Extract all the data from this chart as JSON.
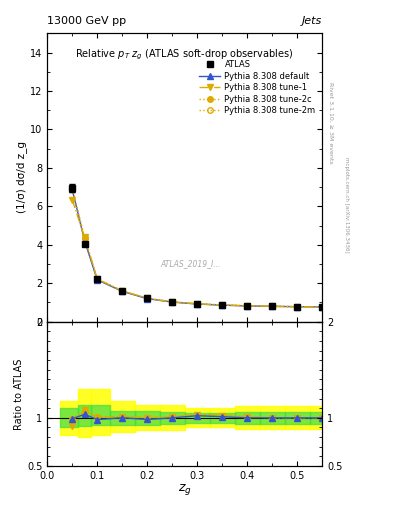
{
  "title_top_left": "13000 GeV pp",
  "title_top_right": "Jets",
  "main_title": "Relative $p_T$ $z_g$ (ATLAS soft-drop observables)",
  "xlabel": "$z_g$",
  "ylabel_main": "(1/σ) dσ/d z_g",
  "ylabel_ratio": "Ratio to ATLAS",
  "watermark": "ATLAS_2019_I...",
  "right_label1": "Rivet 3.1.10, ≥ 3M events",
  "right_label2": "mcplots.cern.ch [arXiv:1306.3436]",
  "zg_points": [
    0.05,
    0.075,
    0.1,
    0.15,
    0.2,
    0.25,
    0.3,
    0.35,
    0.4,
    0.45,
    0.5,
    0.55
  ],
  "atlas_data": [
    6.95,
    4.05,
    2.22,
    1.58,
    1.22,
    1.02,
    0.9,
    0.85,
    0.82,
    0.8,
    0.78,
    0.77
  ],
  "atlas_err": [
    0.2,
    0.12,
    0.08,
    0.05,
    0.04,
    0.03,
    0.025,
    0.025,
    0.02,
    0.02,
    0.02,
    0.02
  ],
  "pythia_default": [
    6.88,
    4.2,
    2.18,
    1.58,
    1.2,
    1.02,
    0.92,
    0.86,
    0.82,
    0.8,
    0.78,
    0.77
  ],
  "pythia_tune1": [
    6.35,
    4.38,
    2.22,
    1.6,
    1.22,
    1.03,
    0.93,
    0.87,
    0.83,
    0.8,
    0.78,
    0.77
  ],
  "pythia_tune2c": [
    6.9,
    4.35,
    2.24,
    1.6,
    1.22,
    1.03,
    0.93,
    0.87,
    0.83,
    0.8,
    0.78,
    0.77
  ],
  "pythia_tune2m": [
    6.9,
    4.35,
    2.24,
    1.6,
    1.22,
    1.03,
    0.93,
    0.87,
    0.83,
    0.8,
    0.78,
    0.77
  ],
  "color_default": "#3355cc",
  "color_tune1": "#ddaa00",
  "color_tune2c": "#ddaa00",
  "color_tune2m": "#ddaa00",
  "ratio_default": [
    0.99,
    1.037,
    0.982,
    1.001,
    0.983,
    1.0,
    1.022,
    1.012,
    1.0,
    1.0,
    1.0,
    1.0
  ],
  "ratio_tune1": [
    0.913,
    1.081,
    1.0,
    1.013,
    1.0,
    1.01,
    1.033,
    1.024,
    1.012,
    1.0,
    1.0,
    1.0
  ],
  "ratio_tune2c": [
    0.993,
    1.074,
    1.009,
    1.013,
    1.0,
    1.01,
    1.033,
    1.024,
    1.012,
    1.0,
    1.0,
    1.0
  ],
  "ratio_tune2m": [
    0.993,
    1.074,
    1.009,
    1.013,
    1.0,
    1.01,
    1.033,
    1.024,
    1.012,
    1.0,
    1.0,
    1.0
  ],
  "band_yellow_lo": [
    0.82,
    0.8,
    0.82,
    0.85,
    0.87,
    0.87,
    0.9,
    0.9,
    0.88,
    0.88,
    0.88,
    0.88
  ],
  "band_yellow_hi": [
    1.18,
    1.3,
    1.3,
    1.18,
    1.13,
    1.13,
    1.1,
    1.1,
    1.12,
    1.12,
    1.12,
    1.12
  ],
  "band_green_lo": [
    0.9,
    0.92,
    0.93,
    0.93,
    0.93,
    0.94,
    0.95,
    0.95,
    0.94,
    0.94,
    0.94,
    0.94
  ],
  "band_green_hi": [
    1.1,
    1.13,
    1.13,
    1.07,
    1.07,
    1.06,
    1.05,
    1.05,
    1.06,
    1.06,
    1.06,
    1.06
  ],
  "ylim_main": [
    0,
    15
  ],
  "ylim_ratio": [
    0.5,
    2.0
  ],
  "xlim": [
    0.0,
    0.55
  ],
  "yticks_main": [
    0,
    2,
    4,
    6,
    8,
    10,
    12,
    14
  ],
  "yticks_ratio": [
    0.5,
    1.0,
    2.0
  ]
}
